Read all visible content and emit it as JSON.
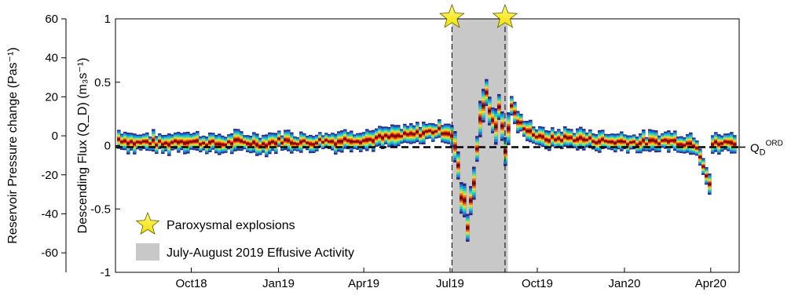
{
  "chart_data": {
    "type": "line",
    "x_ticks": [
      "Oct18",
      "Jan19",
      "Apr19",
      "Jul19",
      "Oct19",
      "Jan20",
      "Apr20"
    ],
    "xlim": [
      "2018-07-13",
      "2020-05-01"
    ],
    "left_axis": {
      "label": "Reservoir Pressure change (Pas⁻¹)",
      "ticks": [
        60,
        40,
        20,
        0,
        -20,
        -40,
        -60
      ],
      "range": [
        -70,
        60
      ]
    },
    "right_axis": {
      "label": "Descending Flux (Q_D) (m₃s⁻¹)",
      "ticks": [
        1,
        0.5,
        0,
        -0.5,
        -1
      ],
      "range": [
        -1,
        1
      ]
    },
    "reference_line": {
      "label": "Q_D^ORD",
      "value": 0.0
    },
    "shaded_periods": [
      {
        "label": "July-August 2019 Effusive Activity",
        "start": "2019-07-03",
        "end": "2019-08-31",
        "color": "#c8c8c8"
      }
    ],
    "events": [
      {
        "label": "Paroxysmal explosions",
        "date": "2019-07-03"
      },
      {
        "label": "Paroxysmal explosions",
        "date": "2019-08-28"
      }
    ],
    "series": [
      {
        "x": [
          "2018-07-15",
          "2018-08-01",
          "2018-08-15",
          "2018-09-01",
          "2018-09-15",
          "2018-10-01",
          "2018-10-15",
          "2018-11-01",
          "2018-11-15",
          "2018-12-01",
          "2018-12-15",
          "2019-01-01",
          "2019-01-15",
          "2019-02-01",
          "2019-02-15",
          "2019-03-01",
          "2019-03-15",
          "2019-04-01",
          "2019-04-15",
          "2019-05-01",
          "2019-05-15",
          "2019-06-01",
          "2019-06-15",
          "2019-06-30",
          "2019-07-03",
          "2019-07-10",
          "2019-07-17",
          "2019-07-24",
          "2019-07-31",
          "2019-08-07",
          "2019-08-14",
          "2019-08-21",
          "2019-08-28",
          "2019-09-01",
          "2019-09-07",
          "2019-09-15",
          "2019-10-01",
          "2019-10-15",
          "2019-11-01",
          "2019-11-15",
          "2019-12-01",
          "2019-12-15",
          "2020-01-01",
          "2020-01-15",
          "2020-02-01",
          "2020-02-15",
          "2020-03-01",
          "2020-03-15",
          "2020-03-29",
          "2020-04-01",
          "2020-04-15",
          "2020-05-01"
        ],
        "values": [
          0.05,
          0.02,
          0.03,
          0.01,
          0.04,
          0.03,
          0.02,
          0.01,
          0.03,
          0.02,
          0.01,
          0.04,
          0.03,
          0.02,
          0.04,
          0.03,
          0.05,
          0.04,
          0.06,
          0.07,
          0.08,
          0.1,
          0.12,
          0.1,
          0.05,
          -0.35,
          -0.6,
          -0.3,
          0.3,
          0.35,
          0.2,
          0.25,
          -0.1,
          0.35,
          0.2,
          0.15,
          0.06,
          0.05,
          0.06,
          0.05,
          0.04,
          0.03,
          0.03,
          0.02,
          0.03,
          0.04,
          0.02,
          0.01,
          -0.3,
          0.01,
          0.02,
          0.03
        ]
      }
    ],
    "legend": {
      "position": "bottom-left",
      "entries": [
        "Paroxysmal explosions",
        "July-August 2019 Effusive Activity"
      ]
    },
    "grid": false
  }
}
